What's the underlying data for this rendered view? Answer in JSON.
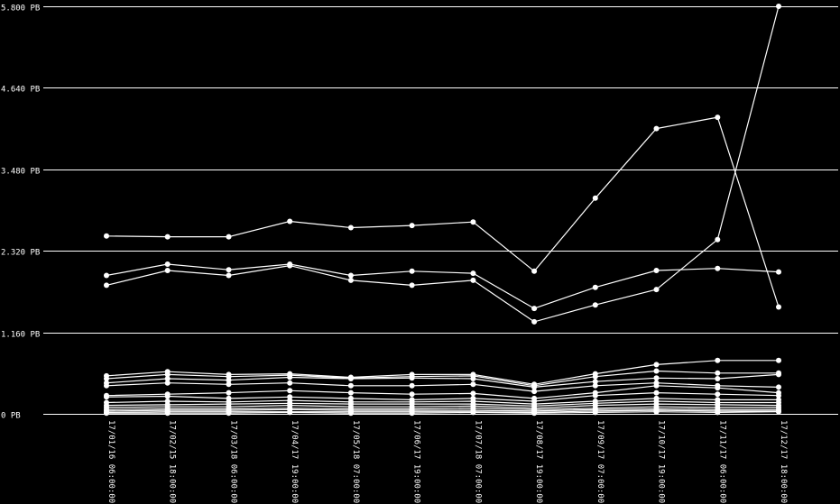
{
  "chart_data": {
    "type": "line",
    "title": "",
    "xlabel": "",
    "ylabel": "",
    "ylim": [
      0,
      5.8
    ],
    "grid": true,
    "legend": "none",
    "y_ticks": [
      {
        "value": 0,
        "label": "0 PB"
      },
      {
        "value": 1.16,
        "label": "1.160 PB"
      },
      {
        "value": 2.32,
        "label": "2.320 PB"
      },
      {
        "value": 3.48,
        "label": "3.480 PB"
      },
      {
        "value": 4.64,
        "label": "4.640 PB"
      },
      {
        "value": 5.8,
        "label": "5.800 PB"
      }
    ],
    "categories": [
      "17/01/16 06:00:00",
      "17/02/15 18:00:00",
      "17/03/18 06:00:00",
      "17/04/17 19:00:00",
      "17/05/18 07:00:00",
      "17/06/17 19:00:00",
      "17/07/18 07:00:00",
      "17/08/17 19:00:00",
      "17/09/17 07:00:00",
      "17/10/17 19:00:00",
      "17/11/17 06:00:00",
      "17/12/17 18:00:00"
    ],
    "series": [
      {
        "values": [
          2.53,
          2.52,
          2.52,
          2.74,
          2.65,
          2.68,
          2.73,
          2.03,
          3.07,
          4.06,
          4.22,
          1.52
        ]
      },
      {
        "values": [
          1.97,
          2.13,
          2.05,
          2.13,
          1.97,
          2.03,
          2.0,
          1.5,
          1.8,
          2.04,
          2.07,
          2.02
        ]
      },
      {
        "values": [
          1.83,
          2.04,
          1.97,
          2.11,
          1.9,
          1.83,
          1.9,
          1.31,
          1.55,
          1.77,
          2.48,
          5.8
        ]
      },
      {
        "values": [
          0.54,
          0.6,
          0.56,
          0.57,
          0.52,
          0.56,
          0.56,
          0.42,
          0.57,
          0.7,
          0.76,
          0.76
        ]
      },
      {
        "values": [
          0.5,
          0.56,
          0.53,
          0.55,
          0.51,
          0.53,
          0.54,
          0.4,
          0.53,
          0.61,
          0.58,
          0.58
        ]
      },
      {
        "values": [
          0.44,
          0.5,
          0.48,
          0.52,
          0.5,
          0.51,
          0.5,
          0.38,
          0.46,
          0.51,
          0.5,
          0.56
        ]
      },
      {
        "values": [
          0.4,
          0.44,
          0.42,
          0.44,
          0.4,
          0.4,
          0.42,
          0.32,
          0.4,
          0.44,
          0.4,
          0.38
        ]
      },
      {
        "values": [
          0.26,
          0.28,
          0.3,
          0.33,
          0.3,
          0.28,
          0.29,
          0.22,
          0.3,
          0.4,
          0.37,
          0.3
        ]
      },
      {
        "values": [
          0.24,
          0.25,
          0.22,
          0.24,
          0.22,
          0.2,
          0.22,
          0.18,
          0.26,
          0.3,
          0.28,
          0.26
        ]
      },
      {
        "values": [
          0.16,
          0.18,
          0.17,
          0.19,
          0.17,
          0.17,
          0.18,
          0.14,
          0.18,
          0.22,
          0.2,
          0.2
        ]
      },
      {
        "values": [
          0.12,
          0.13,
          0.14,
          0.15,
          0.14,
          0.14,
          0.14,
          0.11,
          0.15,
          0.18,
          0.16,
          0.16
        ]
      },
      {
        "values": [
          0.09,
          0.1,
          0.1,
          0.12,
          0.1,
          0.1,
          0.11,
          0.08,
          0.12,
          0.14,
          0.13,
          0.12
        ]
      },
      {
        "values": [
          0.06,
          0.07,
          0.07,
          0.08,
          0.07,
          0.07,
          0.08,
          0.06,
          0.08,
          0.1,
          0.09,
          0.09
        ]
      },
      {
        "values": [
          0.04,
          0.05,
          0.05,
          0.06,
          0.05,
          0.05,
          0.05,
          0.04,
          0.06,
          0.07,
          0.06,
          0.06
        ]
      },
      {
        "values": [
          0.02,
          0.03,
          0.03,
          0.03,
          0.03,
          0.03,
          0.03,
          0.02,
          0.04,
          0.05,
          0.04,
          0.04
        ]
      },
      {
        "values": [
          0.01,
          0.01,
          0.01,
          0.02,
          0.01,
          0.01,
          0.02,
          0.01,
          0.02,
          0.03,
          0.02,
          0.03
        ]
      }
    ]
  }
}
